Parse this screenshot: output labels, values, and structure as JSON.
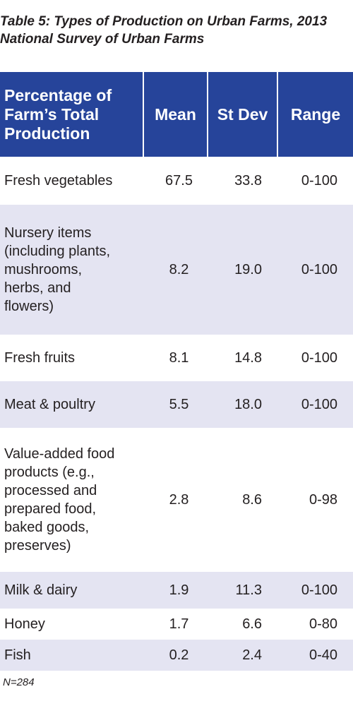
{
  "caption": {
    "line1": "Table 5: Types of Production on Urban Farms, 2013",
    "line2": "National Survey of Urban Farms"
  },
  "table": {
    "headers": {
      "item_line1": "Percentage of",
      "item_line2": "Farm’s Total",
      "item_line3": "Production",
      "mean": "Mean",
      "sd": "St Dev",
      "range": "Range"
    },
    "rows": [
      {
        "item": "Fresh vegetables",
        "mean": "67.5",
        "sd": "33.8",
        "range": "0-100"
      },
      {
        "item_lines": [
          "Nursery items",
          "(including plants,",
          "mushrooms,",
          "herbs, and",
          "flowers)"
        ],
        "mean": "8.2",
        "sd": "19.0",
        "range": "0-100"
      },
      {
        "item": "Fresh fruits",
        "mean": "8.1",
        "sd": "14.8",
        "range": "0-100"
      },
      {
        "item": "Meat & poultry",
        "mean": "5.5",
        "sd": "18.0",
        "range": "0-100"
      },
      {
        "item_lines": [
          "Value-added food",
          "products (e.g.,",
          "processed and",
          "prepared food,",
          "baked goods,",
          "preserves)"
        ],
        "mean": "2.8",
        "sd": "8.6",
        "range": "0-98"
      },
      {
        "item": "Milk & dairy",
        "mean": "1.9",
        "sd": "11.3",
        "range": "0-100"
      },
      {
        "item": "Honey",
        "mean": "1.7",
        "sd": "6.6",
        "range": "0-80"
      },
      {
        "item": "Fish",
        "mean": "0.2",
        "sd": "2.4",
        "range": "0-40"
      }
    ]
  },
  "note": "N=284",
  "colors": {
    "header_bg": "#26449a",
    "header_text": "#ffffff",
    "row_shade": "#e4e4f2",
    "text": "#231f20"
  }
}
